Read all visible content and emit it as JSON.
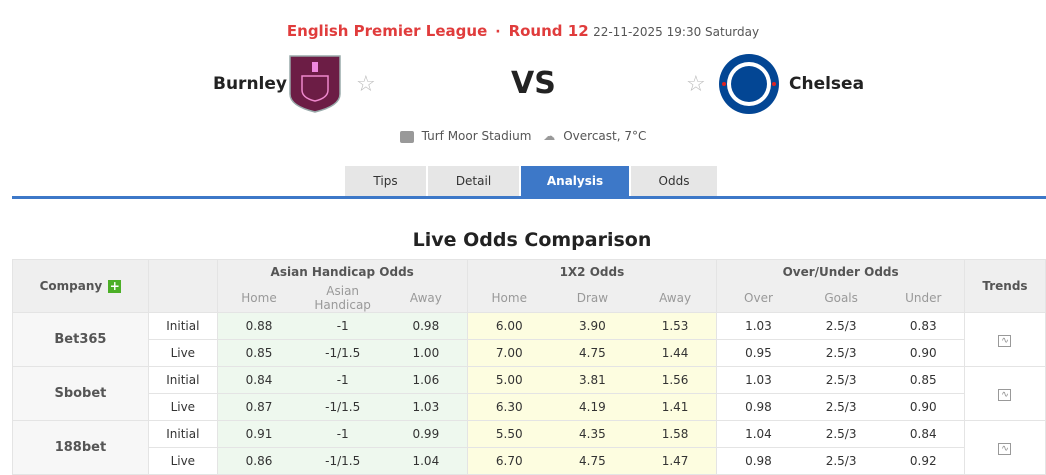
{
  "header": {
    "league": "English Premier League",
    "round": "Round 12",
    "datetime": "22-11-2025 19:30 Saturday"
  },
  "home": {
    "name": "Burnley",
    "color": "#6c1d45"
  },
  "away": {
    "name": "Chelsea",
    "color": "#034694"
  },
  "vs": "VS",
  "venue": "Turf Moor Stadium",
  "weather": "Overcast, 7°C",
  "tabs": [
    "Tips",
    "Detail",
    "Analysis",
    "Odds"
  ],
  "active_tab": "Analysis",
  "section_title": "Live Odds Comparison",
  "table": {
    "company_label": "Company",
    "groups": [
      "Asian Handicap Odds",
      "1X2 Odds",
      "Over/Under Odds"
    ],
    "trends_label": "Trends",
    "subheaders": [
      "Home",
      "Asian Handicap",
      "Away",
      "Home",
      "Draw",
      "Away",
      "Over",
      "Goals",
      "Under"
    ],
    "rows": [
      {
        "company": "Bet365",
        "lines": [
          {
            "type": "Initial",
            "v": [
              "0.88",
              "-1",
              "0.98",
              "6.00",
              "3.90",
              "1.53",
              "1.03",
              "2.5/3",
              "0.83"
            ]
          },
          {
            "type": "Live",
            "v": [
              "0.85",
              "-1/1.5",
              "1.00",
              "7.00",
              "4.75",
              "1.44",
              "0.95",
              "2.5/3",
              "0.90"
            ]
          }
        ]
      },
      {
        "company": "Sbobet",
        "lines": [
          {
            "type": "Initial",
            "v": [
              "0.84",
              "-1",
              "1.06",
              "5.00",
              "3.81",
              "1.56",
              "1.03",
              "2.5/3",
              "0.85"
            ]
          },
          {
            "type": "Live",
            "v": [
              "0.87",
              "-1/1.5",
              "1.03",
              "6.30",
              "4.19",
              "1.41",
              "0.98",
              "2.5/3",
              "0.90"
            ]
          }
        ]
      },
      {
        "company": "188bet",
        "lines": [
          {
            "type": "Initial",
            "v": [
              "0.91",
              "-1",
              "0.99",
              "5.50",
              "4.35",
              "1.58",
              "1.04",
              "2.5/3",
              "0.84"
            ]
          },
          {
            "type": "Live",
            "v": [
              "0.86",
              "-1/1.5",
              "1.04",
              "6.70",
              "4.75",
              "1.47",
              "0.98",
              "2.5/3",
              "0.92"
            ]
          }
        ]
      }
    ]
  }
}
